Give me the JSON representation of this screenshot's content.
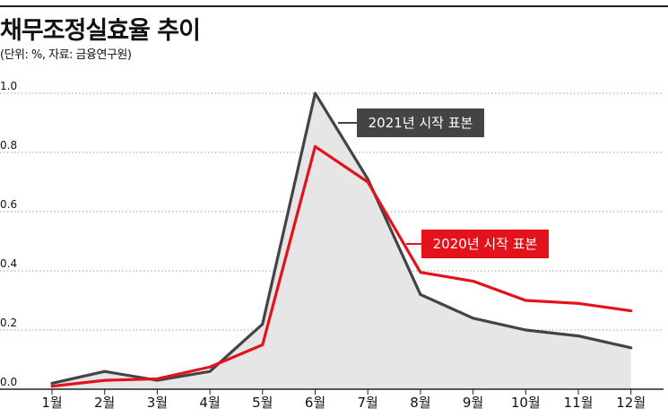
{
  "header": {
    "title": "채무조정실효율 추이",
    "subtitle": "(단위: %, 자료: 금융연구원)"
  },
  "chart_data": {
    "type": "line",
    "title": "채무조정실효율 추이",
    "subtitle": "(단위: %, 자료: 금융연구원)",
    "categories": [
      "1월",
      "2월",
      "3월",
      "4월",
      "5월",
      "6월",
      "7월",
      "8월",
      "9월",
      "10월",
      "11월",
      "12월"
    ],
    "y_ticks": [
      "0.0",
      "0.2",
      "0.4",
      "0.6",
      "0.8",
      "1.0"
    ],
    "ylim": [
      0,
      1.0
    ],
    "grid": true,
    "series": [
      {
        "name": "2021년 시작 표본",
        "color": "#444444",
        "fill": "#e6e6e6",
        "values": [
          0.02,
          0.06,
          0.03,
          0.06,
          0.22,
          1.0,
          0.71,
          0.32,
          0.24,
          0.2,
          0.18,
          0.14
        ]
      },
      {
        "name": "2020년 시작 표본",
        "color": "#e3121b",
        "values": [
          0.01,
          0.03,
          0.035,
          0.075,
          0.15,
          0.82,
          0.7,
          0.395,
          0.365,
          0.3,
          0.29,
          0.265
        ]
      }
    ]
  }
}
